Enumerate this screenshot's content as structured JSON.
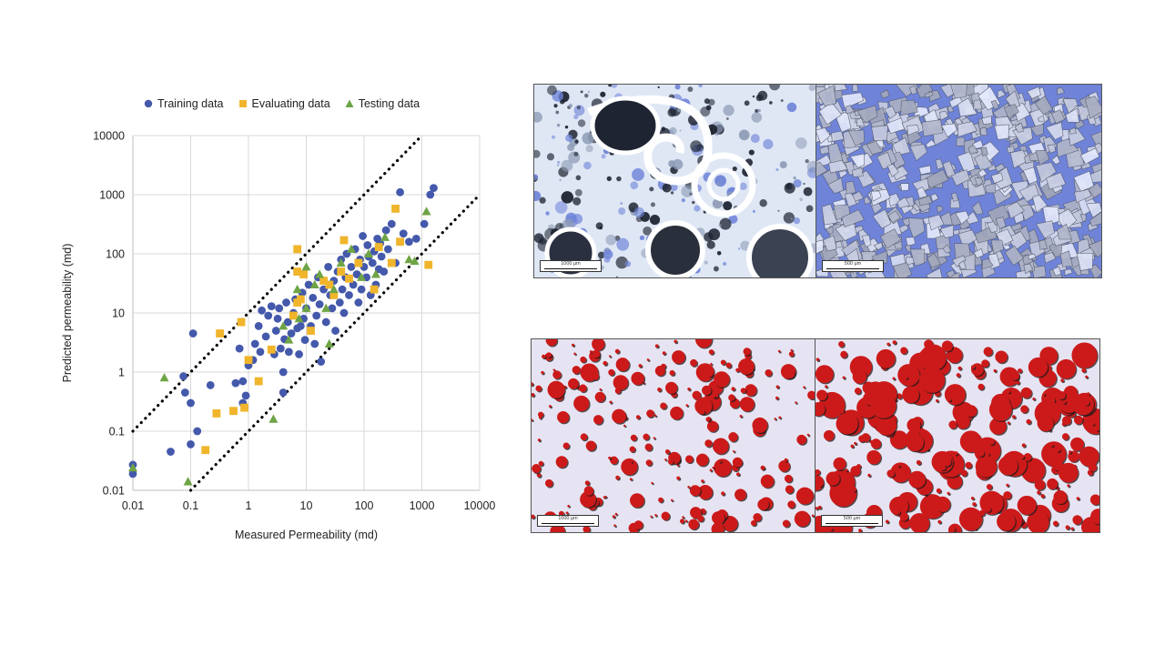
{
  "legend": {
    "training": "Training data",
    "evaluating": "Evaluating data",
    "testing": "Testing data"
  },
  "colors": {
    "training": "#4459ab",
    "evaluating": "#f0b52b",
    "testing": "#6ea445",
    "grid": "#d9d9d9",
    "axis": "#bfbfbf",
    "microscope_blue": "#6f83d8",
    "pore_red": "#cc1a1a",
    "pore_background": "#e6e4f2"
  },
  "chart_data": {
    "type": "scatter",
    "title": "",
    "xlabel": "Measured Permeability (md)",
    "ylabel": "Predicted permeability (md)",
    "xscale": "log",
    "yscale": "log",
    "xlim": [
      0.01,
      10000
    ],
    "ylim": [
      0.01,
      10000
    ],
    "xticks": [
      "0.01",
      "0.1",
      "1",
      "10",
      "100",
      "1000",
      "10000"
    ],
    "yticks": [
      "0.01",
      "0.1",
      "1",
      "10",
      "100",
      "1000",
      "10000"
    ],
    "grid": true,
    "legend_position": "top",
    "bounds": [
      {
        "name": "upper",
        "x": [
          0.01,
          1000
        ],
        "y": [
          0.1,
          10000
        ]
      },
      {
        "name": "lower",
        "x": [
          0.1,
          10000
        ],
        "y": [
          0.01,
          1000
        ]
      }
    ],
    "series": [
      {
        "name": "Training data",
        "marker": "circle",
        "points": [
          [
            0.01,
            0.027
          ],
          [
            0.01,
            0.019
          ],
          [
            0.045,
            0.045
          ],
          [
            0.075,
            0.85
          ],
          [
            0.08,
            0.45
          ],
          [
            0.1,
            0.06
          ],
          [
            0.1,
            0.3
          ],
          [
            0.11,
            4.5
          ],
          [
            0.13,
            0.1
          ],
          [
            0.22,
            0.6
          ],
          [
            0.6,
            0.65
          ],
          [
            0.7,
            2.5
          ],
          [
            0.8,
            0.3
          ],
          [
            0.8,
            0.7
          ],
          [
            0.9,
            0.4
          ],
          [
            1,
            1.3
          ],
          [
            1.2,
            1.6
          ],
          [
            1.3,
            3
          ],
          [
            1.5,
            6
          ],
          [
            1.6,
            2.2
          ],
          [
            1.7,
            11
          ],
          [
            2,
            4
          ],
          [
            2.2,
            9
          ],
          [
            2.5,
            13
          ],
          [
            2.8,
            2
          ],
          [
            3,
            5
          ],
          [
            3.2,
            8
          ],
          [
            3.4,
            12
          ],
          [
            3.6,
            2.5
          ],
          [
            4,
            1
          ],
          [
            4,
            0.45
          ],
          [
            4.2,
            3.6
          ],
          [
            4.5,
            15
          ],
          [
            4.8,
            7
          ],
          [
            5,
            2.2
          ],
          [
            5.5,
            4.5
          ],
          [
            6,
            10
          ],
          [
            6.5,
            17
          ],
          [
            7,
            5.5
          ],
          [
            7.5,
            2
          ],
          [
            8,
            6
          ],
          [
            8.5,
            22
          ],
          [
            9,
            8
          ],
          [
            9.5,
            3.5
          ],
          [
            10,
            12
          ],
          [
            11,
            30
          ],
          [
            12,
            6
          ],
          [
            13,
            18
          ],
          [
            14,
            3
          ],
          [
            15,
            9
          ],
          [
            16,
            40
          ],
          [
            17,
            14
          ],
          [
            18,
            1.5
          ],
          [
            20,
            25
          ],
          [
            22,
            7
          ],
          [
            24,
            60
          ],
          [
            26,
            20
          ],
          [
            28,
            12
          ],
          [
            30,
            35
          ],
          [
            32,
            5
          ],
          [
            35,
            50
          ],
          [
            38,
            15
          ],
          [
            40,
            80
          ],
          [
            42,
            25
          ],
          [
            45,
            10
          ],
          [
            48,
            40
          ],
          [
            50,
            100
          ],
          [
            55,
            20
          ],
          [
            60,
            60
          ],
          [
            65,
            30
          ],
          [
            70,
            120
          ],
          [
            75,
            45
          ],
          [
            80,
            15
          ],
          [
            85,
            80
          ],
          [
            90,
            25
          ],
          [
            95,
            200
          ],
          [
            100,
            60
          ],
          [
            110,
            40
          ],
          [
            115,
            140
          ],
          [
            120,
            90
          ],
          [
            130,
            20
          ],
          [
            140,
            70
          ],
          [
            150,
            110
          ],
          [
            160,
            30
          ],
          [
            170,
            180
          ],
          [
            180,
            55
          ],
          [
            190,
            150
          ],
          [
            200,
            90
          ],
          [
            220,
            50
          ],
          [
            240,
            250
          ],
          [
            260,
            120
          ],
          [
            300,
            320
          ],
          [
            350,
            70
          ],
          [
            420,
            1100
          ],
          [
            480,
            220
          ],
          [
            600,
            160
          ],
          [
            800,
            180
          ],
          [
            1100,
            320
          ],
          [
            1400,
            1000
          ],
          [
            1600,
            1300
          ]
        ]
      },
      {
        "name": "Evaluating data",
        "marker": "square",
        "points": [
          [
            0.18,
            0.048
          ],
          [
            0.28,
            0.2
          ],
          [
            0.32,
            4.5
          ],
          [
            0.55,
            0.22
          ],
          [
            0.75,
            7
          ],
          [
            0.85,
            0.25
          ],
          [
            1,
            1.6
          ],
          [
            1.5,
            0.7
          ],
          [
            2.5,
            2.4
          ],
          [
            6,
            9
          ],
          [
            7,
            15
          ],
          [
            7,
            120
          ],
          [
            7,
            50
          ],
          [
            8,
            17
          ],
          [
            9,
            45
          ],
          [
            12,
            5
          ],
          [
            20,
            35
          ],
          [
            25,
            30
          ],
          [
            30,
            20
          ],
          [
            40,
            50
          ],
          [
            45,
            170
          ],
          [
            55,
            38
          ],
          [
            80,
            70
          ],
          [
            150,
            25
          ],
          [
            180,
            130
          ],
          [
            300,
            70
          ],
          [
            350,
            580
          ],
          [
            420,
            160
          ],
          [
            1300,
            65
          ]
        ]
      },
      {
        "name": "Testing data",
        "marker": "triangle",
        "points": [
          [
            0.01,
            0.024
          ],
          [
            0.035,
            0.8
          ],
          [
            0.09,
            0.014
          ],
          [
            2.7,
            0.16
          ],
          [
            4,
            6
          ],
          [
            5,
            3.5
          ],
          [
            7,
            25
          ],
          [
            7.5,
            8
          ],
          [
            10,
            60
          ],
          [
            10,
            12
          ],
          [
            14,
            30
          ],
          [
            17,
            45
          ],
          [
            22,
            12
          ],
          [
            25,
            3
          ],
          [
            30,
            25
          ],
          [
            40,
            70
          ],
          [
            60,
            120
          ],
          [
            90,
            40
          ],
          [
            120,
            100
          ],
          [
            160,
            45
          ],
          [
            230,
            190
          ],
          [
            600,
            80
          ],
          [
            750,
            75
          ],
          [
            1200,
            520
          ]
        ]
      }
    ]
  },
  "images": {
    "thin_section_left": {
      "scale_label": "1000 µm"
    },
    "thin_section_right": {
      "scale_label": "500 µm"
    },
    "pore_map_left": {
      "scale_label": "1000 µm"
    },
    "pore_map_right": {
      "scale_label": "500 µm"
    }
  }
}
